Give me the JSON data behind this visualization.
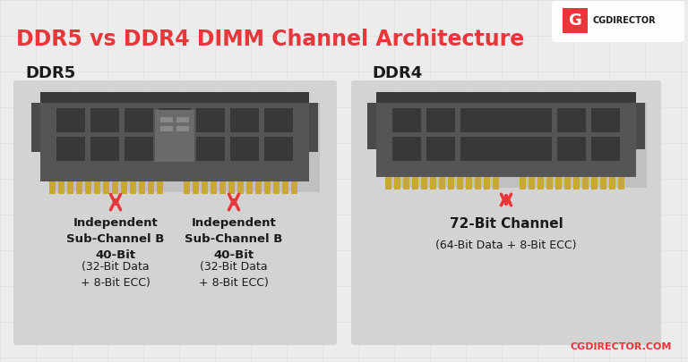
{
  "title": "DDR5 vs DDR4 DIMM Channel Architecture",
  "title_color": "#E8363A",
  "bg_color": "#ECECEC",
  "panel_bg": "#D3D3D3",
  "ddr5_label": "DDR5",
  "ddr4_label": "DDR4",
  "ddr5_sub1_bold": "Independent\nSub-Channel B\n40-Bit",
  "ddr5_sub1_normal": "(32-Bit Data\n+ 8-Bit ECC)",
  "ddr5_sub2_bold": "Independent\nSub-Channel B\n40-Bit",
  "ddr5_sub2_normal": "(32-Bit Data\n+ 8-Bit ECC)",
  "ddr4_main_bold": "72-Bit Channel",
  "ddr4_main_normal": "(64-Bit Data + 8-Bit ECC)",
  "arrow_color": "#E8363A",
  "text_color": "#1A1A1A",
  "logo_text": "CGDIRECTOR",
  "logo_color": "#E8363A",
  "watermark": "CGDIRECTOR.COM",
  "watermark_color": "#E8363A",
  "ram_body_color": "#555555",
  "ram_chip_dark": "#383838",
  "ram_chip_light": "#6A6A6A",
  "ram_pin_color": "#C8A832",
  "ram_shadow_color": "#C0C0C0",
  "ram_top_bar": "#3A3A3A",
  "ram_side_tab": "#4A4A4A"
}
